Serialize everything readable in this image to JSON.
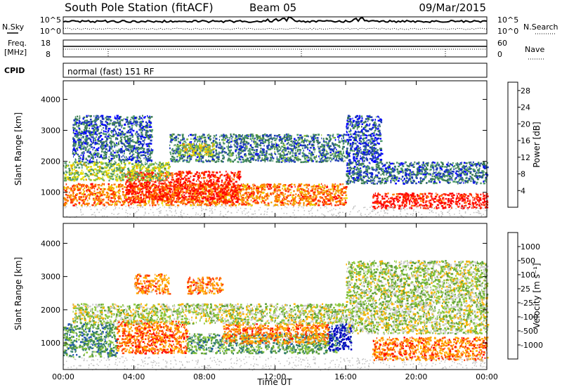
{
  "header": {
    "station": "South Pole Station (fitACF)",
    "beam": "Beam 05",
    "date": "09/Mar/2015"
  },
  "aux_panels": {
    "nsky_label": "N.Sky",
    "nsearch_label": "N.Search",
    "noise_ticks": [
      "10^5",
      "10^0"
    ],
    "freq_label_1": "Freq.",
    "freq_label_2": "[MHz]",
    "freq_ticks": [
      "18",
      "8"
    ],
    "nave_label": "Nave",
    "nave_ticks": [
      "60",
      "0"
    ],
    "cpid_label": "CPID",
    "cpid_value": "normal (fast) 151 RF"
  },
  "colors": {
    "power_scale": [
      "#0000ff",
      "#1f3fb4",
      "#3a7a52",
      "#4f9a6a",
      "#8fc43a",
      "#e8e000",
      "#f4a400",
      "#ff7800",
      "#ff3000",
      "#ff0000"
    ],
    "velocity_scale": [
      "#0000c0",
      "#1f50b0",
      "#2e7d6a",
      "#5fa03a",
      "#8cc83a",
      "#cccccc",
      "#ffb400",
      "#ff8c00",
      "#ff4400",
      "#ff0000"
    ],
    "ground_scatter": "#c0c0c0"
  },
  "chart_data": [
    {
      "type": "heatmap",
      "name": "power",
      "ylabel": "Slant Range [km]",
      "xlabel": "",
      "yticks": [
        1000,
        2000,
        3000,
        4000
      ],
      "ylim": [
        200,
        4600
      ],
      "xlim": [
        0,
        24
      ],
      "xticks": [
        0,
        4,
        8,
        12,
        16,
        20,
        24
      ],
      "colorbar_label": "Power [dB]",
      "colorbar_ticks": [
        4,
        8,
        12,
        16,
        20,
        24,
        28
      ],
      "colorbar_range": [
        0,
        30
      ],
      "regions": [
        {
          "t0": 0.0,
          "t1": 16.0,
          "r0": 600,
          "r1": 1300,
          "level": 0.75
        },
        {
          "t0": 3.5,
          "t1": 10.0,
          "r0": 700,
          "r1": 1700,
          "level": 0.9
        },
        {
          "t0": 0.0,
          "t1": 6.0,
          "r0": 1400,
          "r1": 2000,
          "level": 0.45
        },
        {
          "t0": 0.5,
          "t1": 5.0,
          "r0": 2000,
          "r1": 3500,
          "level": 0.2
        },
        {
          "t0": 6.0,
          "t1": 16.0,
          "r0": 2000,
          "r1": 2900,
          "level": 0.25
        },
        {
          "t0": 6.5,
          "t1": 8.5,
          "r0": 2200,
          "r1": 2600,
          "level": 0.55
        },
        {
          "t0": 16.0,
          "t1": 24.0,
          "r0": 1300,
          "r1": 2000,
          "level": 0.22
        },
        {
          "t0": 17.5,
          "t1": 24.0,
          "r0": 500,
          "r1": 1000,
          "level": 0.95
        },
        {
          "t0": 16.0,
          "t1": 18.0,
          "r0": 2000,
          "r1": 3500,
          "level": 0.15
        }
      ]
    },
    {
      "type": "heatmap",
      "name": "velocity",
      "ylabel": "Slant Range [km]",
      "xlabel": "Time UT",
      "yticks": [
        1000,
        2000,
        3000,
        4000
      ],
      "ylim": [
        200,
        4600
      ],
      "xlim": [
        0,
        24
      ],
      "xticks": [
        0,
        4,
        8,
        12,
        16,
        20,
        24
      ],
      "xtick_labels": [
        "00:00",
        "04:00",
        "08:00",
        "12:00",
        "16:00",
        "20:00",
        "00:00"
      ],
      "colorbar_label": "Velocity [m s⁻¹]",
      "colorbar_ticks": [
        "1000",
        "500",
        "100",
        "25",
        "-25",
        "-100",
        "-500",
        "-1000"
      ],
      "regions": [
        {
          "t0": 0.0,
          "t1": 3.0,
          "r0": 600,
          "r1": 1600,
          "level": 0.3
        },
        {
          "t0": 3.0,
          "t1": 7.0,
          "r0": 700,
          "r1": 1700,
          "level": 0.8
        },
        {
          "t0": 7.0,
          "t1": 15.5,
          "r0": 700,
          "r1": 1300,
          "level": 0.35
        },
        {
          "t0": 15.0,
          "t1": 16.3,
          "r0": 800,
          "r1": 1600,
          "level": 0.05
        },
        {
          "t0": 9.0,
          "t1": 15.0,
          "r0": 1000,
          "r1": 1600,
          "level": 0.75
        },
        {
          "t0": 0.5,
          "t1": 16.0,
          "r0": 1600,
          "r1": 2200,
          "level": 0.5
        },
        {
          "t0": 4.0,
          "t1": 6.0,
          "r0": 2500,
          "r1": 3100,
          "level": 0.75
        },
        {
          "t0": 7.0,
          "t1": 9.0,
          "r0": 2500,
          "r1": 3000,
          "level": 0.75
        },
        {
          "t0": 17.5,
          "t1": 24.0,
          "r0": 500,
          "r1": 1200,
          "level": 0.78
        },
        {
          "t0": 16.0,
          "t1": 24.0,
          "r0": 1300,
          "r1": 2000,
          "level": 0.5
        },
        {
          "t0": 16.0,
          "t1": 24.0,
          "r0": 2000,
          "r1": 3500,
          "level": 0.48
        }
      ]
    }
  ]
}
